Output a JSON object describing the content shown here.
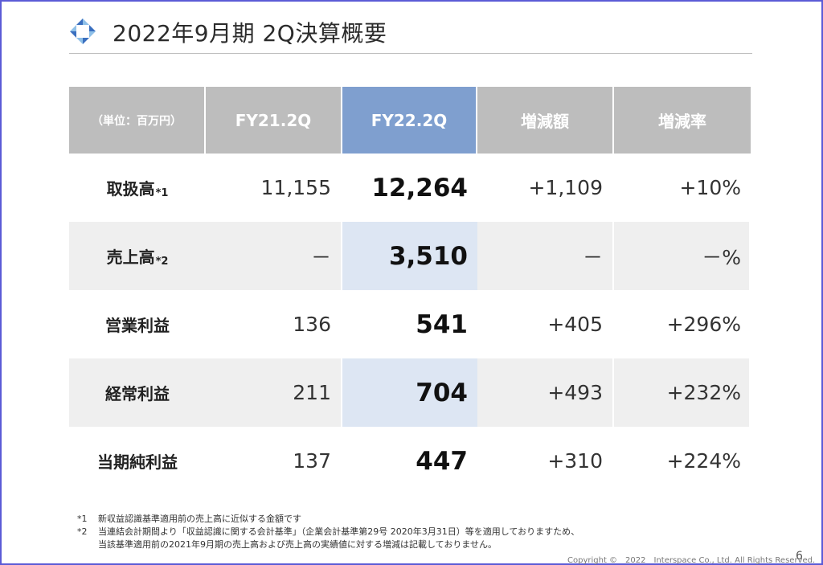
{
  "title": "2022年9月期 2Q決算概要",
  "table": {
    "headers": [
      "（単位：百万円）",
      "FY21.2Q",
      "FY22.2Q",
      "増減額",
      "増減率"
    ],
    "rows": [
      {
        "label": "取扱高",
        "note": "*1",
        "prev": "11,155",
        "curr": "12,264",
        "diff": "+1,109",
        "rate": "+10%"
      },
      {
        "label": "売上高",
        "note": "*2",
        "prev": "－",
        "curr": "3,510",
        "diff": "－",
        "rate": "－%"
      },
      {
        "label": "営業利益",
        "note": "",
        "prev": "136",
        "curr": "541",
        "diff": "+405",
        "rate": "+296%"
      },
      {
        "label": "経常利益",
        "note": "",
        "prev": "211",
        "curr": "704",
        "diff": "+493",
        "rate": "+232%"
      },
      {
        "label": "当期純利益",
        "note": "",
        "prev": "137",
        "curr": "447",
        "diff": "+310",
        "rate": "+224%"
      }
    ]
  },
  "notes": [
    {
      "mark": "*1",
      "text": "新収益認識基準適用前の売上高に近似する金額です"
    },
    {
      "mark": "*2",
      "text": "当連結会計期間より「収益認識に関する会計基準」（企業会計基準第29号 2020年3月31日）等を適用しておりますため、"
    },
    {
      "mark": "",
      "text": "当該基準適用前の2021年9月期の売上高および売上高の実績値に対する増減は記載しておりません。"
    }
  ],
  "footer": {
    "copyright": "Copyright ©　2022　Interspace Co., Ltd. All Rights Reserved.",
    "page": "6"
  },
  "colors": {
    "header_gray": "#bdbdbd",
    "header_highlight": "#7f9fcf",
    "row_shade": "#efefef",
    "cell_highlight": "#dde6f3",
    "logo_blue": "#3a6fbf",
    "logo_light": "#8fc0e8"
  }
}
